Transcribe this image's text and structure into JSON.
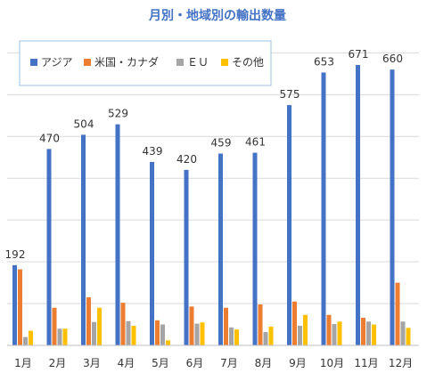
{
  "chart_data": {
    "type": "bar",
    "title": "月別・地域別の輸出数量",
    "categories": [
      "1月",
      "2月",
      "3月",
      "4月",
      "5月",
      "6月",
      "7月",
      "8月",
      "9月",
      "10月",
      "11月",
      "12月"
    ],
    "series": [
      {
        "name": "アジア",
        "color": "#4472C4",
        "values": [
          192,
          470,
          504,
          529,
          439,
          420,
          459,
          461,
          575,
          653,
          671,
          660
        ]
      },
      {
        "name": "米国・カナダ",
        "color": "#ED7D31",
        "values": [
          182,
          90,
          115,
          102,
          60,
          93,
          90,
          98,
          105,
          73,
          66,
          150
        ]
      },
      {
        "name": "ＥＵ",
        "color": "#A5A5A5",
        "values": [
          20,
          40,
          56,
          58,
          50,
          52,
          43,
          32,
          47,
          51,
          57,
          57
        ]
      },
      {
        "name": "その他",
        "color": "#FFC000",
        "values": [
          35,
          40,
          90,
          47,
          12,
          55,
          38,
          45,
          73,
          57,
          50,
          42
        ]
      }
    ],
    "data_labels_series": "アジア",
    "ylim": [
      0,
      720
    ],
    "gridlines": true,
    "legend_position": "top-left"
  }
}
